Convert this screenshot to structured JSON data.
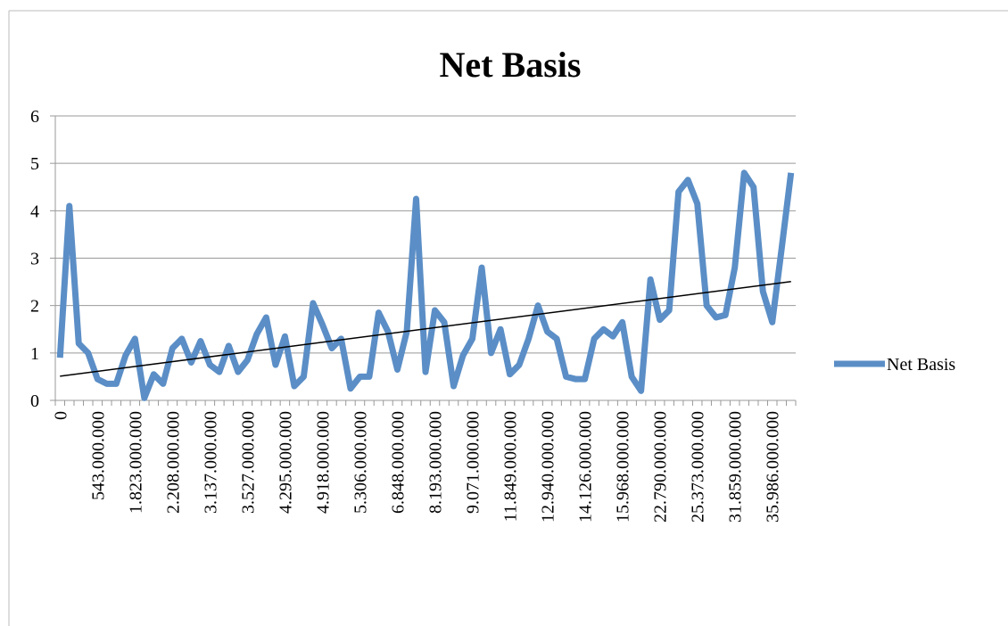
{
  "chart_data": {
    "type": "line",
    "title": "Net Basis",
    "categories": [
      "0",
      null,
      null,
      null,
      "543.000.000",
      null,
      null,
      null,
      "1.823.000.000",
      null,
      null,
      null,
      "2.208.000.000",
      null,
      null,
      null,
      "3.137.000.000",
      null,
      null,
      null,
      "3.527.000.000",
      null,
      null,
      null,
      "4.295.000.000",
      null,
      null,
      null,
      "4.918.000.000",
      null,
      null,
      null,
      "5.306.000.000",
      null,
      null,
      null,
      "6.848.000.000",
      null,
      null,
      null,
      "8.193.000.000",
      null,
      null,
      null,
      "9.071.000.000",
      null,
      null,
      null,
      "11.849.000.000",
      null,
      null,
      null,
      "12.940.000.000",
      null,
      null,
      null,
      "14.126.000.000",
      null,
      null,
      null,
      "15.968.000.000",
      null,
      null,
      null,
      "22.790.000.000",
      null,
      null,
      null,
      "25.373.000.000",
      null,
      null,
      null,
      "31.859.000.000",
      null,
      null,
      null,
      "35.986.000.000",
      null,
      null
    ],
    "series": [
      {
        "name": "Net Basis",
        "color": "#5b8ec6",
        "values": [
          0.9,
          4.1,
          1.2,
          1.0,
          0.45,
          0.35,
          0.35,
          0.95,
          1.3,
          0.05,
          0.55,
          0.35,
          1.1,
          1.3,
          0.8,
          1.25,
          0.75,
          0.6,
          1.15,
          0.6,
          0.85,
          1.4,
          1.75,
          0.75,
          1.35,
          0.3,
          0.5,
          2.05,
          1.6,
          1.1,
          1.3,
          0.25,
          0.5,
          0.5,
          1.85,
          1.45,
          0.65,
          1.45,
          4.25,
          0.6,
          1.9,
          1.65,
          0.3,
          0.95,
          1.3,
          2.8,
          1.0,
          1.5,
          0.55,
          0.75,
          1.3,
          2.0,
          1.45,
          1.3,
          0.5,
          0.45,
          0.45,
          1.3,
          1.5,
          1.35,
          1.65,
          0.5,
          0.2,
          2.55,
          1.7,
          1.9,
          4.4,
          4.65,
          4.15,
          2.0,
          1.75,
          1.8,
          2.8,
          4.8,
          4.5,
          2.3,
          1.65,
          3.2,
          4.8
        ]
      }
    ],
    "trendline": true,
    "trendline_color": "#000000",
    "ylim": [
      0,
      6
    ],
    "yticks": [
      0,
      1,
      2,
      3,
      4,
      5,
      6
    ],
    "grid": true,
    "legend": "right"
  }
}
